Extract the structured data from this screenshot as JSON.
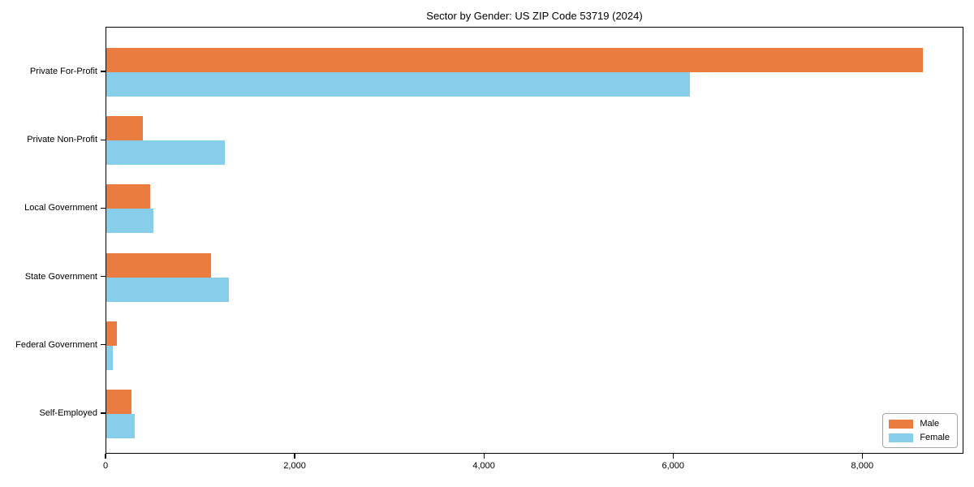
{
  "chart_data": {
    "type": "bar",
    "orientation": "horizontal",
    "title": "Sector by Gender: US ZIP Code 53719 (2024)",
    "categories": [
      "Private For-Profit",
      "Private Non-Profit",
      "Local Government",
      "State Government",
      "Federal Government",
      "Self-Employed"
    ],
    "series": [
      {
        "name": "Male",
        "color": "#E97C3E",
        "values": [
          8630,
          390,
          460,
          1110,
          110,
          270
        ]
      },
      {
        "name": "Female",
        "color": "#87CEEB",
        "values": [
          6170,
          1250,
          500,
          1300,
          70,
          300
        ]
      }
    ],
    "xlabel": "",
    "ylabel": "",
    "xlim": [
      0,
      9070
    ],
    "x_ticks": [
      {
        "value": 0,
        "label": "0"
      },
      {
        "value": 2000,
        "label": "2,000"
      },
      {
        "value": 4000,
        "label": "4,000"
      },
      {
        "value": 6000,
        "label": "6,000"
      },
      {
        "value": 8000,
        "label": "8,000"
      }
    ],
    "grid": false,
    "legend_position": "lower right",
    "legend_title": null
  }
}
